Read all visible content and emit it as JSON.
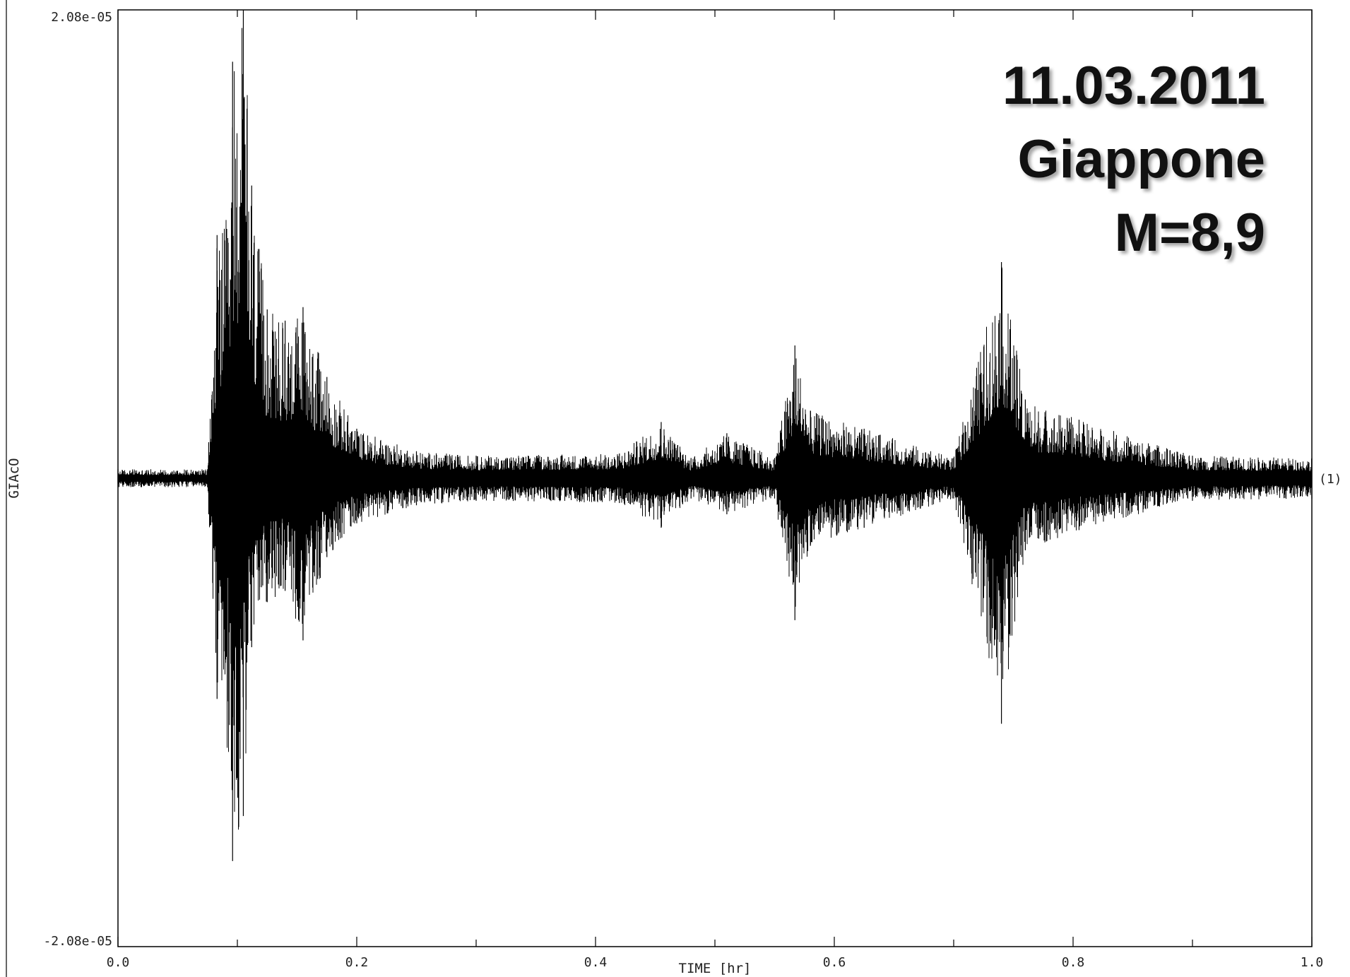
{
  "chart_data": {
    "type": "line",
    "title": "",
    "xlabel": "TIME [hr]",
    "ylabel": "GIAcO",
    "xlim": [
      0.0,
      1.0
    ],
    "ylim": [
      -2.08e-05,
      2.08e-05
    ],
    "x_ticks": [
      "0.0",
      "0.2",
      "0.4",
      "0.6",
      "0.8",
      "1.0"
    ],
    "y_ticks": [
      "2.08e-05",
      "-2.08e-05"
    ],
    "trace_label": "(1)",
    "grid": false,
    "line_color": "#000000",
    "annotation": [
      "11.03.2011",
      "Giappone",
      "M=8,9"
    ],
    "series": [
      {
        "envelope_points": [
          {
            "x": 0.0,
            "max": 4e-07,
            "min": -4e-07
          },
          {
            "x": 0.075,
            "max": 4e-07,
            "min": -4e-07
          },
          {
            "x": 0.076,
            "max": 1.6e-06,
            "min": -1.6e-06
          },
          {
            "x": 0.083,
            "max": 1.08e-05,
            "min": -9.8e-06
          },
          {
            "x": 0.095,
            "max": 1.2e-05,
            "min": -1.3e-05
          },
          {
            "x": 0.096,
            "max": 1.85e-05,
            "min": -1.7e-05
          },
          {
            "x": 0.105,
            "max": 2.08e-05,
            "min": -1.5e-05
          },
          {
            "x": 0.112,
            "max": 1.3e-05,
            "min": -7.5e-06
          },
          {
            "x": 0.125,
            "max": 7.5e-06,
            "min": -5.5e-06
          },
          {
            "x": 0.14,
            "max": 7e-06,
            "min": -5e-06
          },
          {
            "x": 0.155,
            "max": 7.6e-06,
            "min": -7.2e-06
          },
          {
            "x": 0.175,
            "max": 4.5e-06,
            "min": -3.5e-06
          },
          {
            "x": 0.2,
            "max": 2.2e-06,
            "min": -2e-06
          },
          {
            "x": 0.25,
            "max": 1.2e-06,
            "min": -1.2e-06
          },
          {
            "x": 0.3,
            "max": 1e-06,
            "min": -1e-06
          },
          {
            "x": 0.42,
            "max": 1.1e-06,
            "min": -1.1e-06
          },
          {
            "x": 0.455,
            "max": 2.5e-06,
            "min": -2.2e-06
          },
          {
            "x": 0.48,
            "max": 9e-07,
            "min": -9e-07
          },
          {
            "x": 0.51,
            "max": 2e-06,
            "min": -1.6e-06
          },
          {
            "x": 0.55,
            "max": 9e-07,
            "min": -9e-07
          },
          {
            "x": 0.567,
            "max": 5.9e-06,
            "min": -6.3e-06
          },
          {
            "x": 0.58,
            "max": 3e-06,
            "min": -3e-06
          },
          {
            "x": 0.625,
            "max": 2.2e-06,
            "min": -2.2e-06
          },
          {
            "x": 0.7,
            "max": 9e-07,
            "min": -9e-07
          },
          {
            "x": 0.74,
            "max": 9.6e-06,
            "min": -1.09e-05
          },
          {
            "x": 0.76,
            "max": 3.5e-06,
            "min": -3.2e-06
          },
          {
            "x": 0.805,
            "max": 2.6e-06,
            "min": -2.3e-06
          },
          {
            "x": 0.9,
            "max": 1e-06,
            "min": -1e-06
          },
          {
            "x": 1.0,
            "max": 9e-07,
            "min": -9e-07
          }
        ]
      }
    ]
  }
}
